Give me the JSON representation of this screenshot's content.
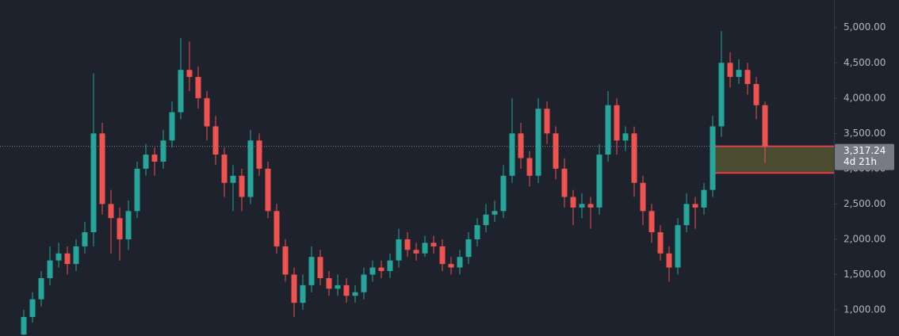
{
  "chart_data": {
    "type": "candlestick",
    "open": [
      650,
      900,
      1150,
      1450,
      1700,
      1800,
      1650,
      1900,
      2100,
      3500,
      2500,
      2300,
      2000,
      2400,
      3000,
      3200,
      3100,
      3400,
      3800,
      4400,
      4300,
      4000,
      3600,
      3200,
      2800,
      2900,
      2600,
      3400,
      3000,
      2400,
      1900,
      1500,
      1100,
      1350,
      1750,
      1450,
      1300,
      1350,
      1200,
      1250,
      1500,
      1600,
      1550,
      1700,
      2000,
      1850,
      1800,
      1950,
      1900,
      1650,
      1600,
      1750,
      2000,
      2200,
      2350,
      2400,
      2900,
      3500,
      3150,
      2900,
      3850,
      3500,
      3000,
      2600,
      2450,
      2500,
      2450,
      3200,
      3900,
      3400,
      3500,
      2800,
      2400,
      2100,
      1800,
      1600,
      2200,
      2500,
      2450,
      2700,
      3600,
      4500,
      4300,
      4400,
      4200,
      3900
    ],
    "high": [
      1000,
      1250,
      1550,
      1900,
      1950,
      1900,
      2000,
      2250,
      4350,
      3650,
      2700,
      2450,
      2550,
      3100,
      3350,
      3300,
      3550,
      3950,
      4850,
      4800,
      4450,
      4100,
      3750,
      3300,
      3050,
      3000,
      3550,
      3500,
      3100,
      2500,
      2000,
      1600,
      1500,
      1900,
      1850,
      1550,
      1500,
      1450,
      1350,
      1600,
      1700,
      1700,
      1800,
      2150,
      2100,
      1950,
      2050,
      2050,
      2000,
      1750,
      1850,
      2100,
      2300,
      2500,
      2550,
      3050,
      4000,
      3650,
      3250,
      4000,
      3950,
      3600,
      3150,
      2700,
      2650,
      2600,
      3350,
      4100,
      4000,
      3600,
      3600,
      2900,
      2500,
      2200,
      1900,
      2300,
      2650,
      2600,
      2800,
      3750,
      4950,
      4650,
      4550,
      4500,
      4300,
      3950
    ],
    "low": [
      640,
      820,
      1050,
      1350,
      1600,
      1500,
      1550,
      1800,
      1900,
      2350,
      1800,
      1700,
      1850,
      2300,
      2900,
      2900,
      3000,
      3300,
      3700,
      4100,
      3850,
      3400,
      3050,
      2600,
      2400,
      2400,
      2500,
      2900,
      2300,
      1800,
      1400,
      900,
      1000,
      1250,
      1350,
      1200,
      1200,
      1100,
      1100,
      1150,
      1400,
      1450,
      1450,
      1600,
      1750,
      1700,
      1750,
      1800,
      1550,
      1500,
      1500,
      1650,
      1900,
      2100,
      2250,
      2300,
      2800,
      3000,
      2750,
      2800,
      3350,
      2850,
      2450,
      2200,
      2300,
      2150,
      2350,
      3100,
      3200,
      3250,
      2600,
      2200,
      1950,
      1700,
      1400,
      1500,
      2100,
      2150,
      2350,
      2600,
      3450,
      4150,
      4200,
      4050,
      3700,
      3080
    ],
    "close": [
      900,
      1150,
      1450,
      1700,
      1800,
      1650,
      1900,
      2100,
      3500,
      2500,
      2300,
      2000,
      2400,
      3000,
      3200,
      3100,
      3400,
      3800,
      4400,
      4300,
      4000,
      3600,
      3200,
      2800,
      2900,
      2600,
      3400,
      3000,
      2400,
      1900,
      1500,
      1100,
      1350,
      1750,
      1450,
      1300,
      1350,
      1200,
      1250,
      1500,
      1600,
      1550,
      1700,
      2000,
      1850,
      1800,
      1950,
      1900,
      1650,
      1600,
      1750,
      2000,
      2200,
      2350,
      2400,
      2900,
      3500,
      3150,
      2900,
      3850,
      3500,
      3000,
      2600,
      2450,
      2500,
      2450,
      3200,
      3900,
      3400,
      3500,
      2800,
      2400,
      2100,
      1800,
      1600,
      2200,
      2500,
      2450,
      2700,
      3600,
      4500,
      4300,
      4400,
      4200,
      3900,
      3317.24
    ],
    "up_color": "#26a69a",
    "down_color": "#ef5350",
    "ylim": [
      630,
      5390
    ],
    "yticks": [
      {
        "value": 1000,
        "label": "1,000.00"
      },
      {
        "value": 1500,
        "label": "1,500.00"
      },
      {
        "value": 2000,
        "label": "2,000.00"
      },
      {
        "value": 2500,
        "label": "2,500.00"
      },
      {
        "value": 3000,
        "label": "3,000.00"
      },
      {
        "value": 3500,
        "label": "3,500.00"
      },
      {
        "value": 4000,
        "label": "4,000.00"
      },
      {
        "value": 4500,
        "label": "4,500.00"
      },
      {
        "value": 5000,
        "label": "5,000.00"
      }
    ],
    "grid": false,
    "last_price": 3317.24,
    "last_price_label": "3,317.24",
    "countdown": "4d 21h",
    "box": {
      "top": 3317.24,
      "bottom": 2940,
      "color": "#4b4c2f",
      "border_color": "#f23645"
    }
  }
}
